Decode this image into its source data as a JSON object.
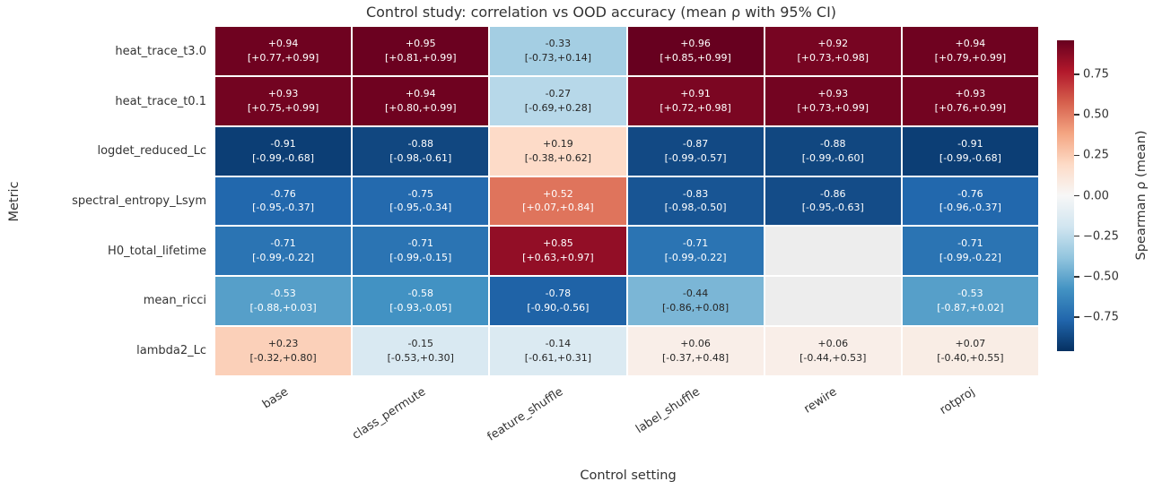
{
  "chart_data": {
    "type": "heatmap",
    "title": "Control study: correlation vs OOD accuracy (mean ρ with 95% CI)",
    "xlabel": "Control setting",
    "ylabel": "Metric",
    "colormap": "RdBu_r",
    "vmin": -0.96,
    "vmax": 0.96,
    "missing_cell_color": "#ededed",
    "columns": [
      "base",
      "class_permute",
      "feature_shuffle",
      "label_shuffle",
      "rewire",
      "rotproj"
    ],
    "rows": [
      "heat_trace_t3.0",
      "heat_trace_t0.1",
      "logdet_reduced_Lc",
      "spectral_entropy_Lsym",
      "H0_total_lifetime",
      "mean_ricci",
      "lambda2_Lc"
    ],
    "cells": [
      [
        {
          "v": 0.94,
          "t": "+0.94",
          "ci": "[+0.77,+0.99]"
        },
        {
          "v": 0.95,
          "t": "+0.95",
          "ci": "[+0.81,+0.99]"
        },
        {
          "v": -0.33,
          "t": "-0.33",
          "ci": "[-0.73,+0.14]"
        },
        {
          "v": 0.96,
          "t": "+0.96",
          "ci": "[+0.85,+0.99]"
        },
        {
          "v": 0.92,
          "t": "+0.92",
          "ci": "[+0.73,+0.98]"
        },
        {
          "v": 0.94,
          "t": "+0.94",
          "ci": "[+0.79,+0.99]"
        }
      ],
      [
        {
          "v": 0.93,
          "t": "+0.93",
          "ci": "[+0.75,+0.99]"
        },
        {
          "v": 0.94,
          "t": "+0.94",
          "ci": "[+0.80,+0.99]"
        },
        {
          "v": -0.27,
          "t": "-0.27",
          "ci": "[-0.69,+0.28]"
        },
        {
          "v": 0.91,
          "t": "+0.91",
          "ci": "[+0.72,+0.98]"
        },
        {
          "v": 0.93,
          "t": "+0.93",
          "ci": "[+0.73,+0.99]"
        },
        {
          "v": 0.93,
          "t": "+0.93",
          "ci": "[+0.76,+0.99]"
        }
      ],
      [
        {
          "v": -0.91,
          "t": "-0.91",
          "ci": "[-0.99,-0.68]"
        },
        {
          "v": -0.88,
          "t": "-0.88",
          "ci": "[-0.98,-0.61]"
        },
        {
          "v": 0.19,
          "t": "+0.19",
          "ci": "[-0.38,+0.62]"
        },
        {
          "v": -0.87,
          "t": "-0.87",
          "ci": "[-0.99,-0.57]"
        },
        {
          "v": -0.88,
          "t": "-0.88",
          "ci": "[-0.99,-0.60]"
        },
        {
          "v": -0.91,
          "t": "-0.91",
          "ci": "[-0.99,-0.68]"
        }
      ],
      [
        {
          "v": -0.76,
          "t": "-0.76",
          "ci": "[-0.95,-0.37]"
        },
        {
          "v": -0.75,
          "t": "-0.75",
          "ci": "[-0.95,-0.34]"
        },
        {
          "v": 0.52,
          "t": "+0.52",
          "ci": "[+0.07,+0.84]"
        },
        {
          "v": -0.83,
          "t": "-0.83",
          "ci": "[-0.98,-0.50]"
        },
        {
          "v": -0.86,
          "t": "-0.86",
          "ci": "[-0.95,-0.63]"
        },
        {
          "v": -0.76,
          "t": "-0.76",
          "ci": "[-0.96,-0.37]"
        }
      ],
      [
        {
          "v": -0.71,
          "t": "-0.71",
          "ci": "[-0.99,-0.22]"
        },
        {
          "v": -0.71,
          "t": "-0.71",
          "ci": "[-0.99,-0.15]"
        },
        {
          "v": 0.85,
          "t": "+0.85",
          "ci": "[+0.63,+0.97]"
        },
        {
          "v": -0.71,
          "t": "-0.71",
          "ci": "[-0.99,-0.22]"
        },
        null,
        {
          "v": -0.71,
          "t": "-0.71",
          "ci": "[-0.99,-0.22]"
        }
      ],
      [
        {
          "v": -0.53,
          "t": "-0.53",
          "ci": "[-0.88,+0.03]"
        },
        {
          "v": -0.58,
          "t": "-0.58",
          "ci": "[-0.93,-0.05]"
        },
        {
          "v": -0.78,
          "t": "-0.78",
          "ci": "[-0.90,-0.56]"
        },
        {
          "v": -0.44,
          "t": "-0.44",
          "ci": "[-0.86,+0.08]"
        },
        null,
        {
          "v": -0.53,
          "t": "-0.53",
          "ci": "[-0.87,+0.02]"
        }
      ],
      [
        {
          "v": 0.23,
          "t": "+0.23",
          "ci": "[-0.32,+0.80]"
        },
        {
          "v": -0.15,
          "t": "-0.15",
          "ci": "[-0.53,+0.30]"
        },
        {
          "v": -0.14,
          "t": "-0.14",
          "ci": "[-0.61,+0.31]"
        },
        {
          "v": 0.06,
          "t": "+0.06",
          "ci": "[-0.37,+0.48]"
        },
        {
          "v": 0.06,
          "t": "+0.06",
          "ci": "[-0.44,+0.53]"
        },
        {
          "v": 0.07,
          "t": "+0.07",
          "ci": "[-0.40,+0.55]"
        }
      ]
    ],
    "colorbar": {
      "label": "Spearman ρ (mean)",
      "ticks": [
        {
          "value": 0.75,
          "label": "0.75"
        },
        {
          "value": 0.5,
          "label": "0.50"
        },
        {
          "value": 0.25,
          "label": "0.25"
        },
        {
          "value": 0.0,
          "label": "0.00"
        },
        {
          "value": -0.25,
          "label": "−0.25"
        },
        {
          "value": -0.5,
          "label": "−0.50"
        },
        {
          "value": -0.75,
          "label": "−0.75"
        }
      ]
    }
  }
}
